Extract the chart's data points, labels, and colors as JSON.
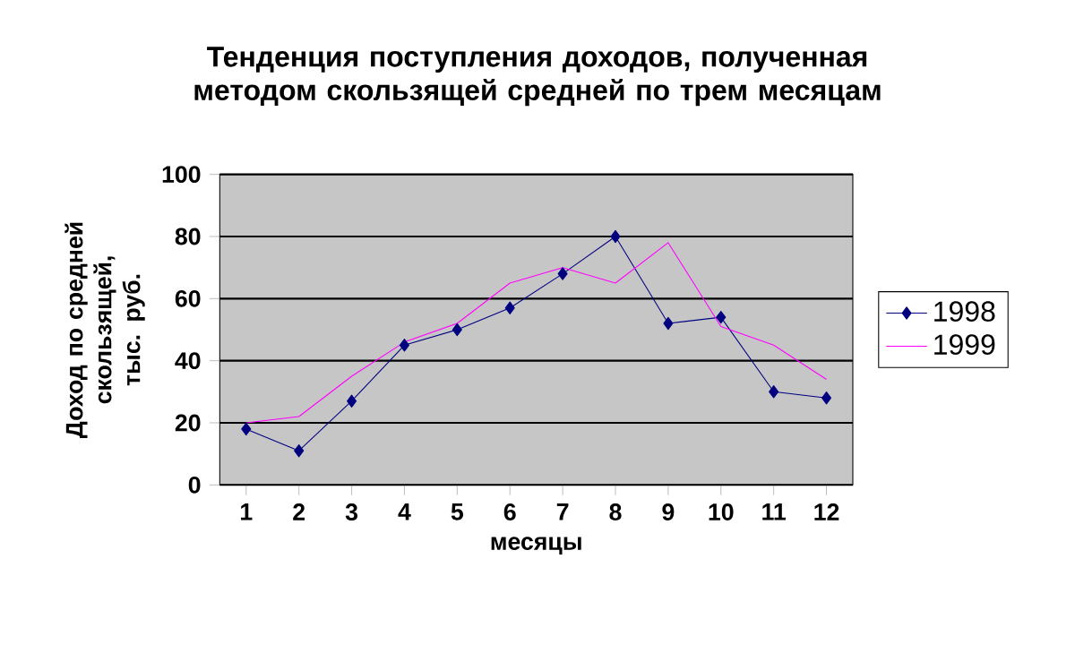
{
  "chart_data": {
    "type": "line",
    "title": "Тенденция поступления доходов, полученная методом скользящей средней по трем месяцам",
    "xlabel": "месяцы",
    "ylabel": "Доход по средней скользящей, тыс. руб.",
    "categories": [
      "1",
      "2",
      "3",
      "4",
      "5",
      "6",
      "7",
      "8",
      "9",
      "10",
      "11",
      "12"
    ],
    "series": [
      {
        "name": "1998",
        "color": "#000080",
        "marker": "diamond",
        "values": [
          18,
          11,
          27,
          45,
          50,
          57,
          68,
          80,
          52,
          54,
          30,
          28
        ]
      },
      {
        "name": "1999",
        "color": "#ff00ff",
        "marker": "none",
        "values": [
          20,
          22,
          35,
          46,
          52,
          65,
          70,
          65,
          78,
          51,
          45,
          34
        ]
      }
    ],
    "ylim": [
      0,
      100
    ],
    "yticks": [
      0,
      20,
      40,
      60,
      80,
      100
    ],
    "grid": "y",
    "legend": "right"
  }
}
